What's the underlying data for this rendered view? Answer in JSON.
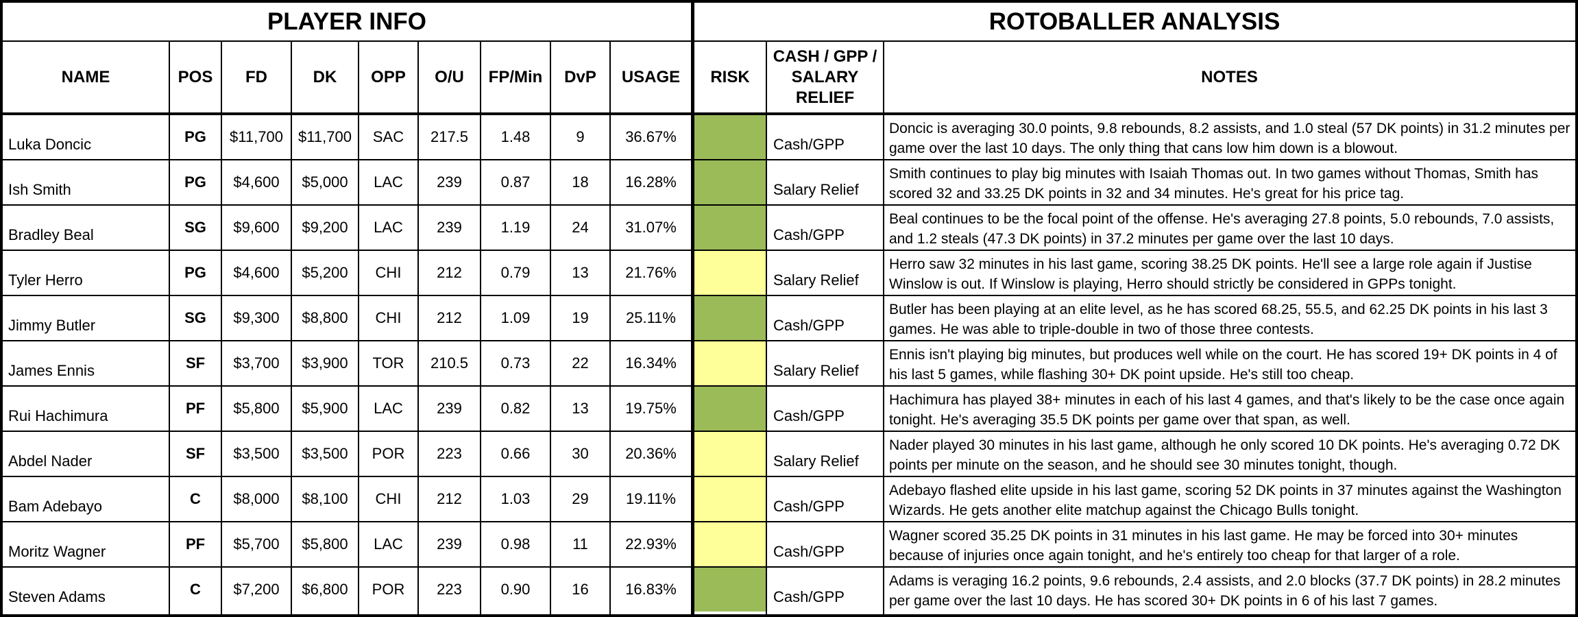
{
  "sections": {
    "player_info": "PLAYER INFO",
    "analysis": "ROTOBALLER ANALYSIS"
  },
  "columns": {
    "name": "NAME",
    "pos": "POS",
    "fd": "FD",
    "dk": "DK",
    "opp": "OPP",
    "ou": "O/U",
    "fpmin": "FP/Min",
    "dvp": "DvP",
    "usage": "USAGE",
    "risk": "RISK",
    "cash": "CASH / GPP / SALARY RELIEF",
    "notes": "NOTES"
  },
  "risk_colors": {
    "low": "#9bbb59",
    "high": "#ffff99"
  },
  "rows": [
    {
      "name": "Luka Doncic",
      "pos": "PG",
      "fd": "$11,700",
      "dk": "$11,700",
      "opp": "SAC",
      "ou": "217.5",
      "fpmin": "1.48",
      "dvp": "9",
      "usage": "36.67%",
      "risk": "low",
      "cash": "Cash/GPP",
      "notes": "Doncic is averaging 30.0 points, 9.8 rebounds, 8.2 assists, and 1.0 steal (57 DK points) in 31.2 minutes per game over the last 10 days. The only thing that cans low him down is a blowout."
    },
    {
      "name": "Ish Smith",
      "pos": "PG",
      "fd": "$4,600",
      "dk": "$5,000",
      "opp": "LAC",
      "ou": "239",
      "fpmin": "0.87",
      "dvp": "18",
      "usage": "16.28%",
      "risk": "low",
      "cash": "Salary Relief",
      "notes": "Smith continues to play big minutes with Isaiah Thomas out. In two games without Thomas, Smith has scored 32 and 33.25 DK points in 32 and 34 minutes. He's great for his price tag."
    },
    {
      "name": "Bradley Beal",
      "pos": "SG",
      "fd": "$9,600",
      "dk": "$9,200",
      "opp": "LAC",
      "ou": "239",
      "fpmin": "1.19",
      "dvp": "24",
      "usage": "31.07%",
      "risk": "low",
      "cash": "Cash/GPP",
      "notes": "Beal continues to be the focal point of the offense. He's averaging 27.8 points, 5.0 rebounds, 7.0 assists, and 1.2 steals (47.3 DK points) in 37.2 minutes per game over the last 10 days."
    },
    {
      "name": "Tyler Herro",
      "pos": "PG",
      "fd": "$4,600",
      "dk": "$5,200",
      "opp": "CHI",
      "ou": "212",
      "fpmin": "0.79",
      "dvp": "13",
      "usage": "21.76%",
      "risk": "high",
      "cash": "Salary Relief",
      "notes": "Herro saw 32 minutes in his last game, scoring 38.25 DK points. He'll see a large role again if Justise Winslow is out.  If Winslow is playing, Herro should strictly be considered in GPPs tonight."
    },
    {
      "name": "Jimmy Butler",
      "pos": "SG",
      "fd": "$9,300",
      "dk": "$8,800",
      "opp": "CHI",
      "ou": "212",
      "fpmin": "1.09",
      "dvp": "19",
      "usage": "25.11%",
      "risk": "low",
      "cash": "Cash/GPP",
      "notes": "Butler has been playing at an elite level, as he has scored 68.25, 55.5, and 62.25 DK points in his last 3 games. He was able to triple-double in two of those three contests."
    },
    {
      "name": "James Ennis",
      "pos": "SF",
      "fd": "$3,700",
      "dk": "$3,900",
      "opp": "TOR",
      "ou": "210.5",
      "fpmin": "0.73",
      "dvp": "22",
      "usage": "16.34%",
      "risk": "high",
      "cash": "Salary Relief",
      "notes": "Ennis isn't playing big minutes, but produces well while on the court. He has scored 19+ DK points in 4 of his last 5 games, while flashing 30+ DK point upside. He's still too cheap."
    },
    {
      "name": "Rui Hachimura",
      "pos": "PF",
      "fd": "$5,800",
      "dk": "$5,900",
      "opp": "LAC",
      "ou": "239",
      "fpmin": "0.82",
      "dvp": "13",
      "usage": "19.75%",
      "risk": "low",
      "cash": "Cash/GPP",
      "notes": "Hachimura has played 38+ minutes in each of his last 4 games, and that's likely to be the case once again tonight. He's averaging 35.5 DK points per game over that span, as well."
    },
    {
      "name": "Abdel Nader",
      "pos": "SF",
      "fd": "$3,500",
      "dk": "$3,500",
      "opp": "POR",
      "ou": "223",
      "fpmin": "0.66",
      "dvp": "30",
      "usage": "20.36%",
      "risk": "high",
      "cash": "Salary Relief",
      "notes": "Nader played 30 minutes in his last game, although he only scored 10 DK points. He's averaging 0.72 DK points per minute on the season, and he should see 30 minutes tonight, though."
    },
    {
      "name": "Bam Adebayo",
      "pos": "C",
      "fd": "$8,000",
      "dk": "$8,100",
      "opp": "CHI",
      "ou": "212",
      "fpmin": "1.03",
      "dvp": "29",
      "usage": "19.11%",
      "risk": "high",
      "cash": "Cash/GPP",
      "notes": "Adebayo flashed elite upside in his last game, scoring 52 DK points in 37 minutes against the Washington Wizards. He gets another elite matchup against the Chicago Bulls tonight."
    },
    {
      "name": "Moritz Wagner",
      "pos": "PF",
      "fd": "$5,700",
      "dk": "$5,800",
      "opp": "LAC",
      "ou": "239",
      "fpmin": "0.98",
      "dvp": "11",
      "usage": "22.93%",
      "risk": "high",
      "cash": "Cash/GPP",
      "notes": "Wagner scored 35.25 DK points in 31 minutes in his last game. He may be forced into 30+ minutes because of injuries once again tonight, and he's entirely too cheap for that larger of a role."
    },
    {
      "name": "Steven Adams",
      "pos": "C",
      "fd": "$7,200",
      "dk": "$6,800",
      "opp": "POR",
      "ou": "223",
      "fpmin": "0.90",
      "dvp": "16",
      "usage": "16.83%",
      "risk": "low",
      "cash": "Cash/GPP",
      "notes": "Adams is veraging 16.2 points, 9.6 rebounds, 2.4 assists, and 2.0 blocks (37.7 DK points) in 28.2 minutes per game over the last 10 days. He has scored 30+ DK points in 6 of his last 7 games."
    }
  ]
}
